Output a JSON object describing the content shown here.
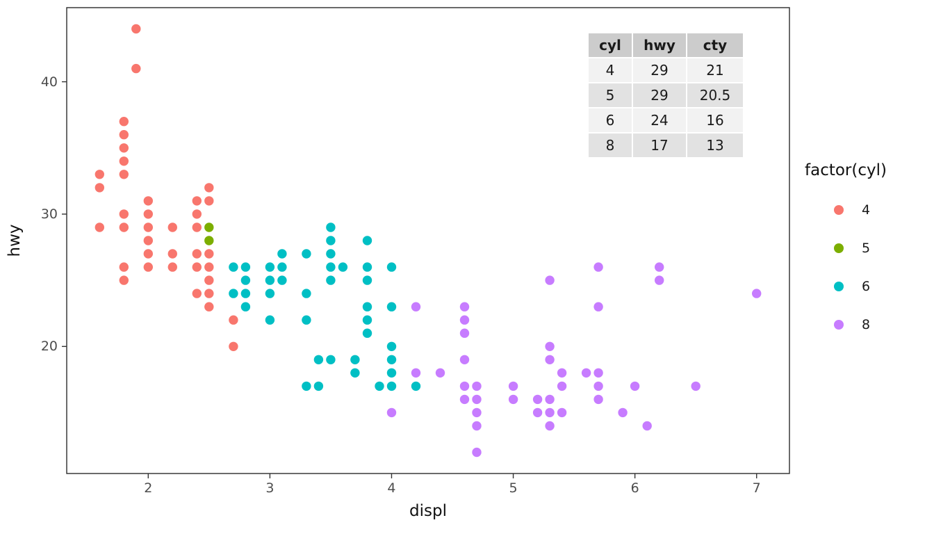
{
  "chart_data": {
    "type": "scatter",
    "title": "",
    "xlabel": "displ",
    "ylabel": "hwy",
    "legend_title": "factor(cyl)",
    "legend_position": "right",
    "grid": false,
    "x_domain": [
      1.33,
      7.27
    ],
    "y_domain": [
      10.4,
      45.6
    ],
    "x_ticks": [
      2,
      3,
      4,
      5,
      6,
      7
    ],
    "y_ticks": [
      20,
      30,
      40
    ],
    "series": [
      {
        "name": "4",
        "color": "#F8766D",
        "points": [
          [
            1.6,
            29
          ],
          [
            1.6,
            32
          ],
          [
            1.6,
            33
          ],
          [
            1.8,
            25
          ],
          [
            1.8,
            26
          ],
          [
            1.8,
            29
          ],
          [
            1.8,
            30
          ],
          [
            1.8,
            33
          ],
          [
            1.8,
            34
          ],
          [
            1.8,
            35
          ],
          [
            1.8,
            36
          ],
          [
            1.8,
            37
          ],
          [
            1.9,
            41
          ],
          [
            1.9,
            44
          ],
          [
            2.0,
            26
          ],
          [
            2.0,
            27
          ],
          [
            2.0,
            28
          ],
          [
            2.0,
            29
          ],
          [
            2.0,
            30
          ],
          [
            2.0,
            31
          ],
          [
            2.2,
            26
          ],
          [
            2.2,
            27
          ],
          [
            2.2,
            29
          ],
          [
            2.4,
            24
          ],
          [
            2.4,
            26
          ],
          [
            2.4,
            27
          ],
          [
            2.4,
            29
          ],
          [
            2.4,
            30
          ],
          [
            2.4,
            31
          ],
          [
            2.5,
            23
          ],
          [
            2.5,
            24
          ],
          [
            2.5,
            25
          ],
          [
            2.5,
            26
          ],
          [
            2.5,
            27
          ],
          [
            2.5,
            31
          ],
          [
            2.5,
            32
          ],
          [
            2.7,
            20
          ],
          [
            2.7,
            22
          ]
        ]
      },
      {
        "name": "5",
        "color": "#7CAE00",
        "points": [
          [
            2.5,
            28
          ],
          [
            2.5,
            29
          ]
        ]
      },
      {
        "name": "6",
        "color": "#00BFC4",
        "points": [
          [
            2.7,
            24
          ],
          [
            2.7,
            26
          ],
          [
            2.8,
            23
          ],
          [
            2.8,
            24
          ],
          [
            2.8,
            25
          ],
          [
            2.8,
            26
          ],
          [
            3.0,
            22
          ],
          [
            3.0,
            24
          ],
          [
            3.0,
            25
          ],
          [
            3.0,
            26
          ],
          [
            3.1,
            25
          ],
          [
            3.1,
            26
          ],
          [
            3.1,
            27
          ],
          [
            3.3,
            17
          ],
          [
            3.3,
            22
          ],
          [
            3.3,
            24
          ],
          [
            3.3,
            27
          ],
          [
            3.4,
            17
          ],
          [
            3.4,
            19
          ],
          [
            3.5,
            19
          ],
          [
            3.5,
            25
          ],
          [
            3.5,
            26
          ],
          [
            3.5,
            27
          ],
          [
            3.5,
            28
          ],
          [
            3.5,
            29
          ],
          [
            3.6,
            26
          ],
          [
            3.7,
            18
          ],
          [
            3.7,
            19
          ],
          [
            3.8,
            21
          ],
          [
            3.8,
            22
          ],
          [
            3.8,
            23
          ],
          [
            3.8,
            25
          ],
          [
            3.8,
            26
          ],
          [
            3.8,
            28
          ],
          [
            3.9,
            17
          ],
          [
            4.0,
            17
          ],
          [
            4.0,
            18
          ],
          [
            4.0,
            19
          ],
          [
            4.0,
            20
          ],
          [
            4.0,
            23
          ],
          [
            4.0,
            26
          ],
          [
            4.2,
            17
          ]
        ]
      },
      {
        "name": "8",
        "color": "#C77CFF",
        "points": [
          [
            4.0,
            15
          ],
          [
            4.2,
            18
          ],
          [
            4.2,
            23
          ],
          [
            4.4,
            18
          ],
          [
            4.6,
            16
          ],
          [
            4.6,
            17
          ],
          [
            4.6,
            19
          ],
          [
            4.6,
            21
          ],
          [
            4.6,
            22
          ],
          [
            4.6,
            23
          ],
          [
            4.7,
            12
          ],
          [
            4.7,
            14
          ],
          [
            4.7,
            15
          ],
          [
            4.7,
            16
          ],
          [
            4.7,
            17
          ],
          [
            5.0,
            16
          ],
          [
            5.0,
            17
          ],
          [
            5.2,
            15
          ],
          [
            5.2,
            16
          ],
          [
            5.3,
            14
          ],
          [
            5.3,
            15
          ],
          [
            5.3,
            16
          ],
          [
            5.3,
            19
          ],
          [
            5.3,
            20
          ],
          [
            5.3,
            25
          ],
          [
            5.4,
            15
          ],
          [
            5.4,
            17
          ],
          [
            5.4,
            18
          ],
          [
            5.6,
            18
          ],
          [
            5.7,
            16
          ],
          [
            5.7,
            17
          ],
          [
            5.7,
            18
          ],
          [
            5.7,
            23
          ],
          [
            5.7,
            26
          ],
          [
            5.9,
            15
          ],
          [
            6.0,
            17
          ],
          [
            6.1,
            14
          ],
          [
            6.2,
            25
          ],
          [
            6.2,
            26
          ],
          [
            6.5,
            17
          ],
          [
            7.0,
            24
          ]
        ]
      }
    ],
    "annotation_table": {
      "headers": [
        "cyl",
        "hwy",
        "cty"
      ],
      "rows": [
        [
          "4",
          "29",
          "21"
        ],
        [
          "5",
          "29",
          "20.5"
        ],
        [
          "6",
          "24",
          "16"
        ],
        [
          "8",
          "17",
          "13"
        ]
      ],
      "header_bg": "#CCCCCC",
      "row_bg_odd": "#F2F2F2",
      "row_bg_even": "#E2E2E2"
    },
    "panel": {
      "background": "#FFFFFF",
      "border_color": "#2B2B2B"
    }
  }
}
